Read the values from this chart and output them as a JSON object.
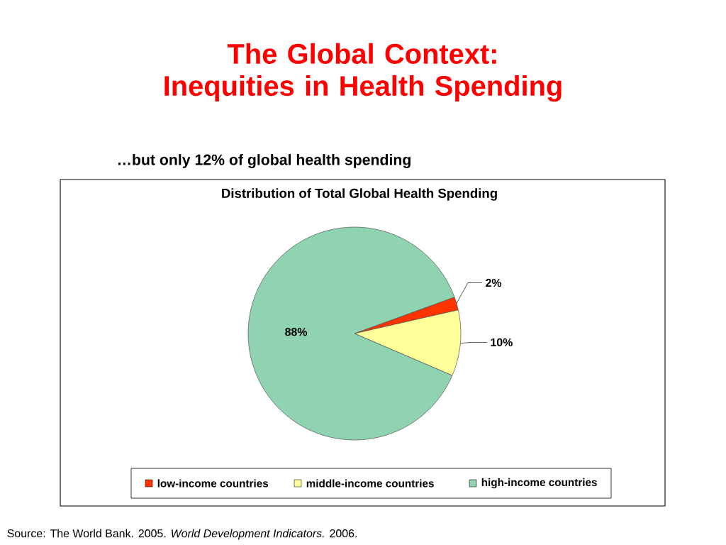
{
  "chart_data": {
    "type": "pie",
    "title": "The Global Context: Inequities in Health Spending",
    "subtitle": "…but only 12% of global health spending",
    "categories": [
      "low-income countries",
      "middle-income countries",
      "high-income countries"
    ],
    "values": [
      2,
      10,
      88
    ],
    "colors": [
      "#ff3300",
      "#ffff99",
      "#8fd3b0"
    ],
    "value_labels": [
      "2%",
      "10%",
      "88%"
    ],
    "legend": "bottom",
    "annotations": [
      "Distribution of Total Global Health Spending",
      "Source: The World Bank. 2005. *World Development Indicators.* 2006."
    ]
  }
}
